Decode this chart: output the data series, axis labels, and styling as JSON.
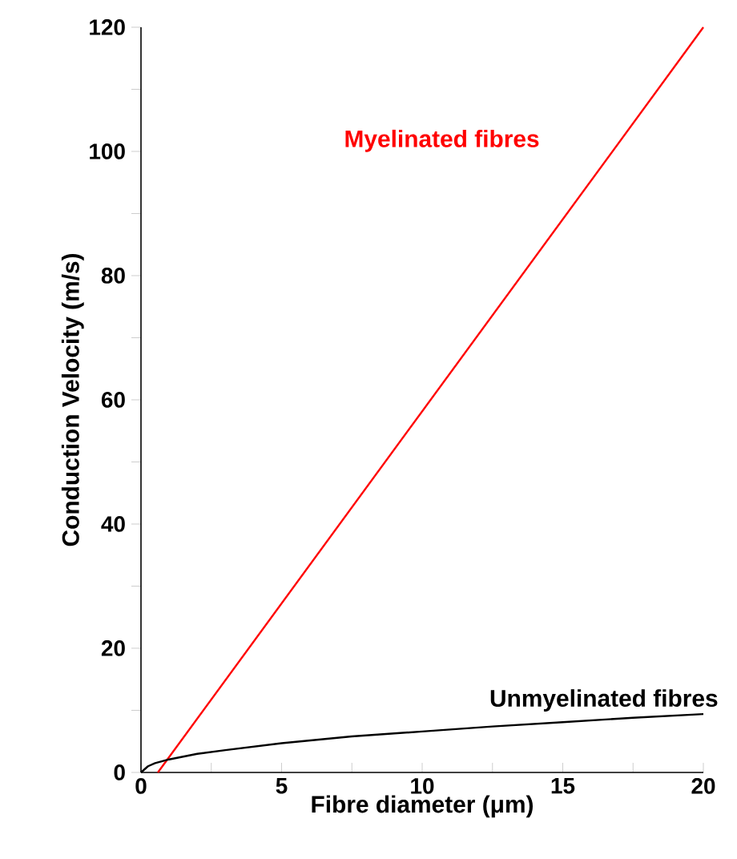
{
  "chart_data": {
    "type": "line",
    "xlabel": "Fibre diameter (μm)",
    "ylabel": "Conduction Velocity (m/s)",
    "xlim": [
      0,
      20
    ],
    "ylim": [
      0,
      120
    ],
    "xticks": [
      0,
      {
        "value": 2.5,
        "label": null
      },
      5,
      {
        "value": 7.5,
        "label": null
      },
      10,
      {
        "value": 12.5,
        "label": null
      },
      15,
      {
        "value": 17.5,
        "label": null
      },
      20
    ],
    "yticks": [
      0,
      {
        "value": 10,
        "label": null
      },
      20,
      {
        "value": 30,
        "label": null
      },
      40,
      {
        "value": 50,
        "label": null
      },
      60,
      {
        "value": 70,
        "label": null
      },
      80,
      {
        "value": 90,
        "label": null
      },
      100,
      {
        "value": 110,
        "label": null
      },
      120
    ],
    "grid": false,
    "legend": false,
    "marker": "none",
    "line_style": "solid",
    "series": [
      {
        "name": "Myelinated fibres",
        "color": "#ff0000",
        "x": [
          0.6,
          20
        ],
        "values": [
          0,
          120
        ]
      },
      {
        "name": "Unmyelinated fibres",
        "color": "#000000",
        "x": [
          0,
          0.25,
          0.5,
          1,
          2,
          3,
          5,
          7.5,
          10,
          12.5,
          15,
          17.5,
          20
        ],
        "values": [
          0,
          1.0,
          1.5,
          2.1,
          3.0,
          3.6,
          4.7,
          5.8,
          6.6,
          7.4,
          8.1,
          8.8,
          9.4
        ]
      }
    ]
  }
}
